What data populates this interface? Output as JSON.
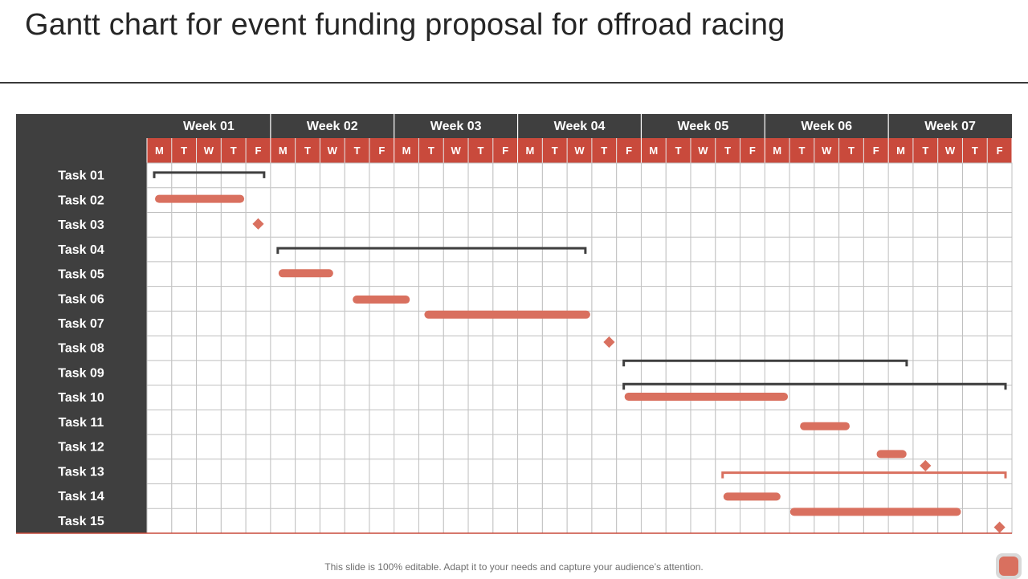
{
  "title": "Gantt chart for event funding proposal for offroad racing",
  "footer": "This slide is 100% editable. Adapt it to your needs and capture your audience’s attention.",
  "colors": {
    "dark": "#3f3f3f",
    "accent": "#c94a3c",
    "bar": "#d9705f",
    "grid": "#bfbfbf",
    "bracket": "#3f3f3f"
  },
  "chart_data": {
    "type": "gantt",
    "weeks": [
      "Week 01",
      "Week 02",
      "Week 03",
      "Week 04",
      "Week 05",
      "Week 06",
      "Week 07"
    ],
    "days": [
      "M",
      "T",
      "W",
      "T",
      "F"
    ],
    "tasks": [
      {
        "name": "Task 01",
        "kind": "summary",
        "start": 0,
        "end": 5
      },
      {
        "name": "Task 02",
        "kind": "bar",
        "start": 0,
        "end": 4
      },
      {
        "name": "Task 03",
        "kind": "milestone",
        "at": 4.5
      },
      {
        "name": "Task 04",
        "kind": "summary",
        "start": 5,
        "end": 18
      },
      {
        "name": "Task 05",
        "kind": "bar",
        "start": 5,
        "end": 7.6
      },
      {
        "name": "Task 06",
        "kind": "bar",
        "start": 8,
        "end": 10.7
      },
      {
        "name": "Task 07",
        "kind": "bar",
        "start": 10.9,
        "end": 18
      },
      {
        "name": "Task 08",
        "kind": "milestone",
        "at": 18.7
      },
      {
        "name": "Task 09",
        "kind": "summary",
        "start": 19,
        "end": 31
      },
      {
        "name": "Task 10",
        "kind": "summary",
        "start": 19,
        "end": 35
      },
      {
        "name": "Task 11",
        "kind": "bar",
        "start": 19,
        "end": 26
      },
      {
        "name": "Task 12",
        "kind": "bar",
        "start": 26.1,
        "end": 28.5
      },
      {
        "name": "Task 13",
        "kind": "bar",
        "start": 29.2,
        "end": 30.8
      },
      {
        "name": "Task 14",
        "kind": "milestone",
        "at": 31.5
      },
      {
        "name": "Task 15",
        "kind": "summary-accent",
        "start": 23,
        "end": 35
      },
      {
        "name": "",
        "kind": "bar",
        "start": 23,
        "end": 25.7
      },
      {
        "name": "",
        "kind": "bar",
        "start": 25.7,
        "end": 33
      },
      {
        "name": "",
        "kind": "milestone",
        "at": 34.5
      }
    ]
  }
}
